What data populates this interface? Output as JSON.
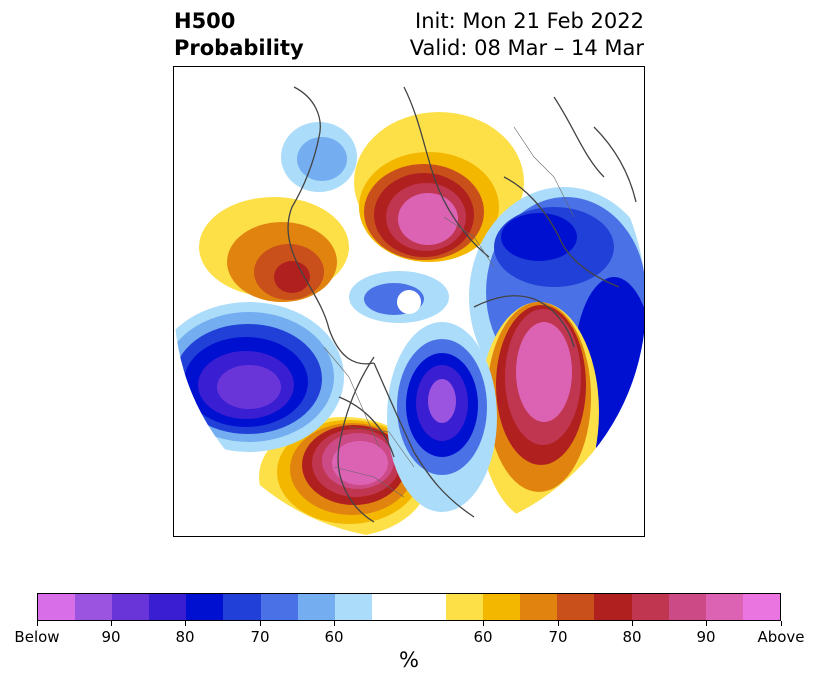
{
  "header": {
    "title_line1": "H500",
    "title_line2": "Probability",
    "init_text": "Init: Mon 21 Feb 2022",
    "valid_text": "Valid: 08 Mar – 14 Mar"
  },
  "map": {
    "projection": "polar stereographic (North Pole)",
    "features": [
      "coastlines",
      "country borders",
      "US state borders"
    ],
    "anomalies": [
      {
        "category": "above",
        "region": "Alaska / Bering Sea",
        "peak": "Above"
      },
      {
        "category": "above",
        "region": "Siberia (west)",
        "peak": "80"
      },
      {
        "category": "above",
        "region": "Scandinavia / Barents",
        "peak": "Above"
      },
      {
        "category": "above",
        "region": "North Atlantic",
        "peak": "90"
      },
      {
        "category": "below",
        "region": "North Pacific",
        "peak": "90"
      },
      {
        "category": "below",
        "region": "Hudson Bay / eastern Canada",
        "peak": "90"
      },
      {
        "category": "below",
        "region": "Central Asia",
        "peak": "80"
      },
      {
        "category": "below",
        "region": "Arctic Ocean",
        "peak": "60"
      }
    ]
  },
  "colorbar": {
    "colors": [
      "#d86fe8",
      "#9a54e0",
      "#6a35d8",
      "#3a1ed2",
      "#0010d0",
      "#2040d8",
      "#4a72e6",
      "#74aef0",
      "#abdcfa",
      "#ffffff",
      "#ffffff",
      "#fde047",
      "#f4b700",
      "#e0840f",
      "#c9501a",
      "#b0201f",
      "#c03550",
      "#cc4a86",
      "#dc62b4",
      "#ea74e0"
    ],
    "tick_labels": [
      "Below",
      "90",
      "80",
      "70",
      "60",
      "60",
      "70",
      "80",
      "90",
      "Above"
    ],
    "units": "%"
  }
}
